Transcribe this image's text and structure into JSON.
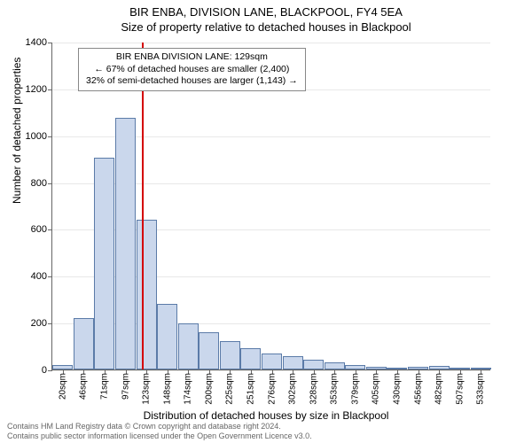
{
  "title": {
    "main": "BIR ENBA, DIVISION LANE, BLACKPOOL, FY4 5EA",
    "sub": "Size of property relative to detached houses in Blackpool"
  },
  "chart": {
    "type": "histogram",
    "ylabel": "Number of detached properties",
    "xlabel": "Distribution of detached houses by size in Blackpool",
    "ylim": [
      0,
      1400
    ],
    "ytick_step": 200,
    "yticks": [
      0,
      200,
      400,
      600,
      800,
      1000,
      1200,
      1400
    ],
    "bar_fill": "#cad7ec",
    "bar_stroke": "#5b7ba8",
    "grid_color": "#666666",
    "background": "#ffffff",
    "marker_color": "#d40000",
    "marker_x_index": 4.3,
    "categories": [
      "20sqm",
      "46sqm",
      "71sqm",
      "97sqm",
      "123sqm",
      "148sqm",
      "174sqm",
      "200sqm",
      "225sqm",
      "251sqm",
      "276sqm",
      "302sqm",
      "328sqm",
      "353sqm",
      "379sqm",
      "405sqm",
      "430sqm",
      "456sqm",
      "482sqm",
      "507sqm",
      "533sqm"
    ],
    "values": [
      20,
      220,
      905,
      1075,
      640,
      280,
      195,
      160,
      120,
      90,
      70,
      55,
      40,
      30,
      20,
      10,
      8,
      12,
      15,
      5,
      3
    ]
  },
  "callout": {
    "line1": "BIR ENBA DIVISION LANE: 129sqm",
    "line2": "← 67% of detached houses are smaller (2,400)",
    "line3": "32% of semi-detached houses are larger (1,143) →"
  },
  "footer": {
    "line1": "Contains HM Land Registry data © Crown copyright and database right 2024.",
    "line2": "Contains public sector information licensed under the Open Government Licence v3.0."
  }
}
